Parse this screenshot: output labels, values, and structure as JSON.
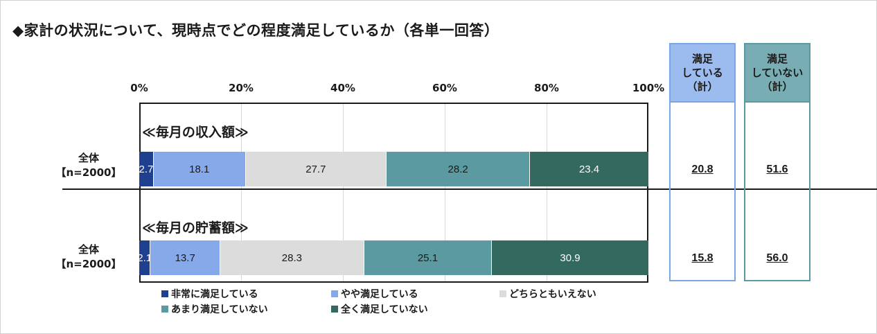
{
  "title": "◆家計の状況について、現時点でどの程度満足しているか（各単一回答）",
  "colors": {
    "very_satisfied": "#1f3f8f",
    "somewhat_satisfied": "#86a9ea",
    "neutral": "#dcdcdc",
    "not_very_satisfied": "#5b9aa0",
    "not_satisfied": "#33695f",
    "satisfied_total_border": "#7aa7e3",
    "satisfied_total_header": "#9cbcf0",
    "unsatisfied_total_border": "#5b9aa0",
    "unsatisfied_total_header": "#78aeb3"
  },
  "totals_headers": {
    "satisfied": "満足\nしている\n（計）",
    "unsatisfied": "満足\nしていない\n（計）"
  },
  "chart_data": {
    "type": "bar",
    "orientation": "horizontal-stacked-100",
    "xlim": [
      0,
      100
    ],
    "ticks": [
      "0%",
      "20%",
      "40%",
      "60%",
      "80%",
      "100%"
    ],
    "grid": true,
    "legend_position": "bottom",
    "categories_legend": [
      "非常に満足している",
      "やや満足している",
      "どちらともいえない",
      "あまり満足していない",
      "全く満足していない"
    ],
    "groups": [
      {
        "section": "≪毎月の収入額≫",
        "row_label_line1": "全体",
        "row_label_line2": "【n=2000】",
        "values": [
          2.7,
          18.1,
          27.7,
          28.2,
          23.4
        ],
        "satisfied_total": "20.8",
        "unsatisfied_total": "51.6"
      },
      {
        "section": "≪毎月の貯蓄額≫",
        "row_label_line1": "全体",
        "row_label_line2": "【n=2000】",
        "values": [
          2.1,
          13.7,
          28.3,
          25.1,
          30.9
        ],
        "satisfied_total": "15.8",
        "unsatisfied_total": "56.0"
      }
    ]
  }
}
